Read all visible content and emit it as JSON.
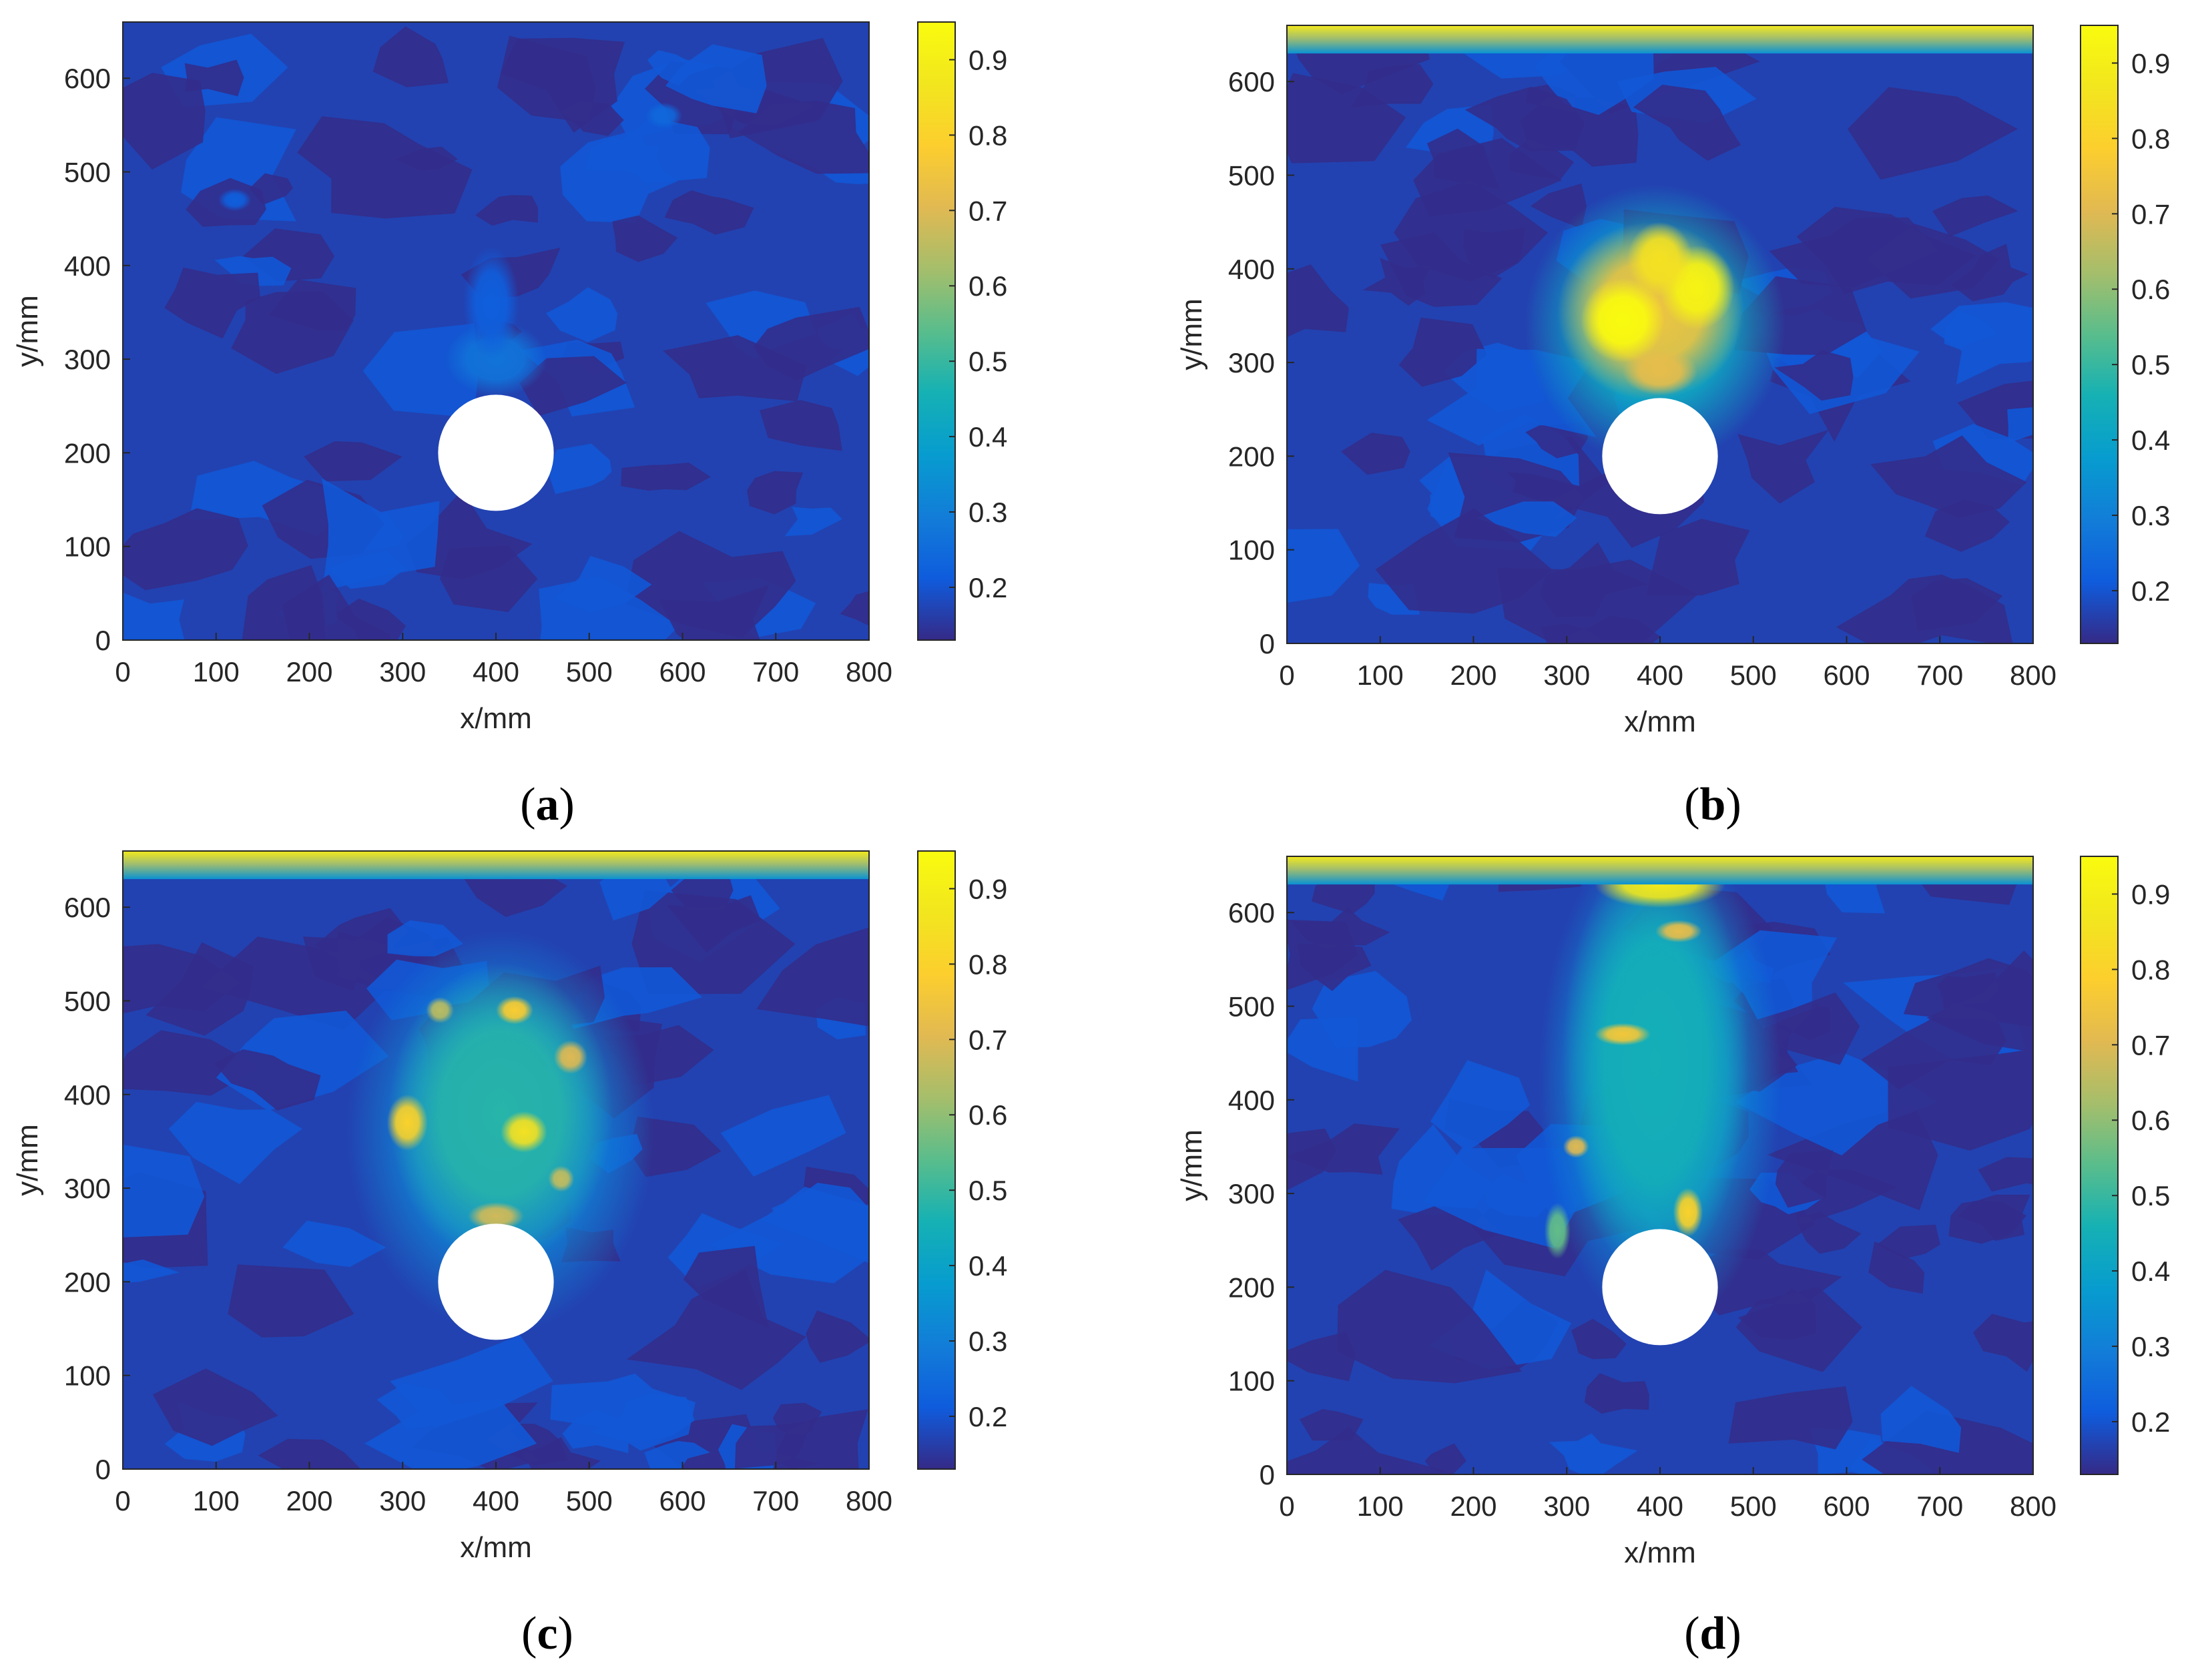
{
  "chart_data": [
    {
      "type": "heatmap",
      "panel": "a",
      "caption": "a",
      "xlabel": "x/mm",
      "ylabel": "y/mm",
      "xlim": [
        0,
        800
      ],
      "ylim": [
        0,
        660
      ],
      "xticks": [
        0,
        100,
        200,
        300,
        400,
        500,
        600,
        700,
        800
      ],
      "yticks": [
        0,
        100,
        200,
        300,
        400,
        500,
        600
      ],
      "colorbar": {
        "range": [
          0.13,
          0.95
        ],
        "ticks": [
          0.2,
          0.3,
          0.4,
          0.5,
          0.6,
          0.7,
          0.8,
          0.9
        ]
      },
      "circle": {
        "cx": 400,
        "cy": 200,
        "r": 62
      },
      "background_value": 0.17,
      "top_band": null,
      "hotspots": [
        {
          "x": 400,
          "y": 300,
          "rx": 55,
          "ry": 40,
          "value": 0.27
        },
        {
          "x": 395,
          "y": 360,
          "rx": 30,
          "ry": 60,
          "value": 0.22
        },
        {
          "x": 580,
          "y": 560,
          "rx": 20,
          "ry": 14,
          "value": 0.24
        },
        {
          "x": 120,
          "y": 470,
          "rx": 18,
          "ry": 12,
          "value": 0.22
        }
      ]
    },
    {
      "type": "heatmap",
      "panel": "b",
      "caption": "b",
      "xlabel": "x/mm",
      "ylabel": "y/mm",
      "xlim": [
        0,
        800
      ],
      "ylim": [
        0,
        660
      ],
      "xticks": [
        0,
        100,
        200,
        300,
        400,
        500,
        600,
        700,
        800
      ],
      "yticks": [
        0,
        100,
        200,
        300,
        400,
        500,
        600
      ],
      "colorbar": {
        "range": [
          0.13,
          0.95
        ],
        "ticks": [
          0.2,
          0.3,
          0.4,
          0.5,
          0.6,
          0.7,
          0.8,
          0.9
        ]
      },
      "circle": {
        "cx": 400,
        "cy": 200,
        "r": 62
      },
      "background_value": 0.17,
      "top_band": {
        "y_start": 630,
        "value_top": 0.88,
        "value_bottom": 0.35
      },
      "hotspots": [
        {
          "x": 395,
          "y": 340,
          "rx": 140,
          "ry": 150,
          "value": 0.42
        },
        {
          "x": 390,
          "y": 355,
          "rx": 100,
          "ry": 95,
          "value": 0.75
        },
        {
          "x": 360,
          "y": 345,
          "rx": 45,
          "ry": 45,
          "value": 0.95
        },
        {
          "x": 440,
          "y": 380,
          "rx": 40,
          "ry": 45,
          "value": 0.92
        },
        {
          "x": 400,
          "y": 410,
          "rx": 35,
          "ry": 40,
          "value": 0.85
        },
        {
          "x": 400,
          "y": 290,
          "rx": 40,
          "ry": 25,
          "value": 0.72
        }
      ]
    },
    {
      "type": "heatmap",
      "panel": "c",
      "caption": "c",
      "xlabel": "x/mm",
      "ylabel": "y/mm",
      "xlim": [
        0,
        800
      ],
      "ylim": [
        0,
        660
      ],
      "xticks": [
        0,
        100,
        200,
        300,
        400,
        500,
        600,
        700,
        800
      ],
      "yticks": [
        0,
        100,
        200,
        300,
        400,
        500,
        600
      ],
      "colorbar": {
        "range": [
          0.13,
          0.95
        ],
        "ticks": [
          0.2,
          0.3,
          0.4,
          0.5,
          0.6,
          0.7,
          0.8,
          0.9
        ]
      },
      "circle": {
        "cx": 400,
        "cy": 200,
        "r": 62
      },
      "background_value": 0.17,
      "top_band": {
        "y_start": 630,
        "value_top": 0.88,
        "value_bottom": 0.35
      },
      "hotspots": [
        {
          "x": 405,
          "y": 360,
          "rx": 165,
          "ry": 215,
          "value": 0.32
        },
        {
          "x": 405,
          "y": 380,
          "rx": 120,
          "ry": 160,
          "value": 0.48
        },
        {
          "x": 305,
          "y": 370,
          "rx": 22,
          "ry": 30,
          "value": 0.8
        },
        {
          "x": 430,
          "y": 360,
          "rx": 25,
          "ry": 22,
          "value": 0.85
        },
        {
          "x": 420,
          "y": 490,
          "rx": 20,
          "ry": 15,
          "value": 0.78
        },
        {
          "x": 340,
          "y": 490,
          "rx": 15,
          "ry": 14,
          "value": 0.65
        },
        {
          "x": 480,
          "y": 440,
          "rx": 18,
          "ry": 18,
          "value": 0.7
        },
        {
          "x": 400,
          "y": 270,
          "rx": 30,
          "ry": 15,
          "value": 0.68
        },
        {
          "x": 470,
          "y": 310,
          "rx": 14,
          "ry": 14,
          "value": 0.66
        }
      ]
    },
    {
      "type": "heatmap",
      "panel": "d",
      "caption": "d",
      "xlabel": "x/mm",
      "ylabel": "y/mm",
      "xlim": [
        0,
        800
      ],
      "ylim": [
        0,
        660
      ],
      "xticks": [
        0,
        100,
        200,
        300,
        400,
        500,
        600,
        700,
        800
      ],
      "yticks": [
        0,
        100,
        200,
        300,
        400,
        500,
        600
      ],
      "colorbar": {
        "range": [
          0.13,
          0.95
        ],
        "ticks": [
          0.2,
          0.3,
          0.4,
          0.5,
          0.6,
          0.7,
          0.8,
          0.9
        ]
      },
      "circle": {
        "cx": 400,
        "cy": 200,
        "r": 62
      },
      "background_value": 0.17,
      "top_band": {
        "y_start": 630,
        "value_top": 0.88,
        "value_bottom": 0.35
      },
      "hotspots": [
        {
          "x": 400,
          "y": 420,
          "rx": 130,
          "ry": 270,
          "value": 0.34
        },
        {
          "x": 395,
          "y": 440,
          "rx": 100,
          "ry": 230,
          "value": 0.45
        },
        {
          "x": 400,
          "y": 630,
          "rx": 70,
          "ry": 25,
          "value": 0.88
        },
        {
          "x": 420,
          "y": 580,
          "rx": 25,
          "ry": 12,
          "value": 0.72
        },
        {
          "x": 360,
          "y": 470,
          "rx": 30,
          "ry": 12,
          "value": 0.76
        },
        {
          "x": 310,
          "y": 350,
          "rx": 14,
          "ry": 12,
          "value": 0.7
        },
        {
          "x": 430,
          "y": 280,
          "rx": 16,
          "ry": 26,
          "value": 0.8
        },
        {
          "x": 290,
          "y": 260,
          "rx": 14,
          "ry": 30,
          "value": 0.55
        }
      ]
    }
  ]
}
